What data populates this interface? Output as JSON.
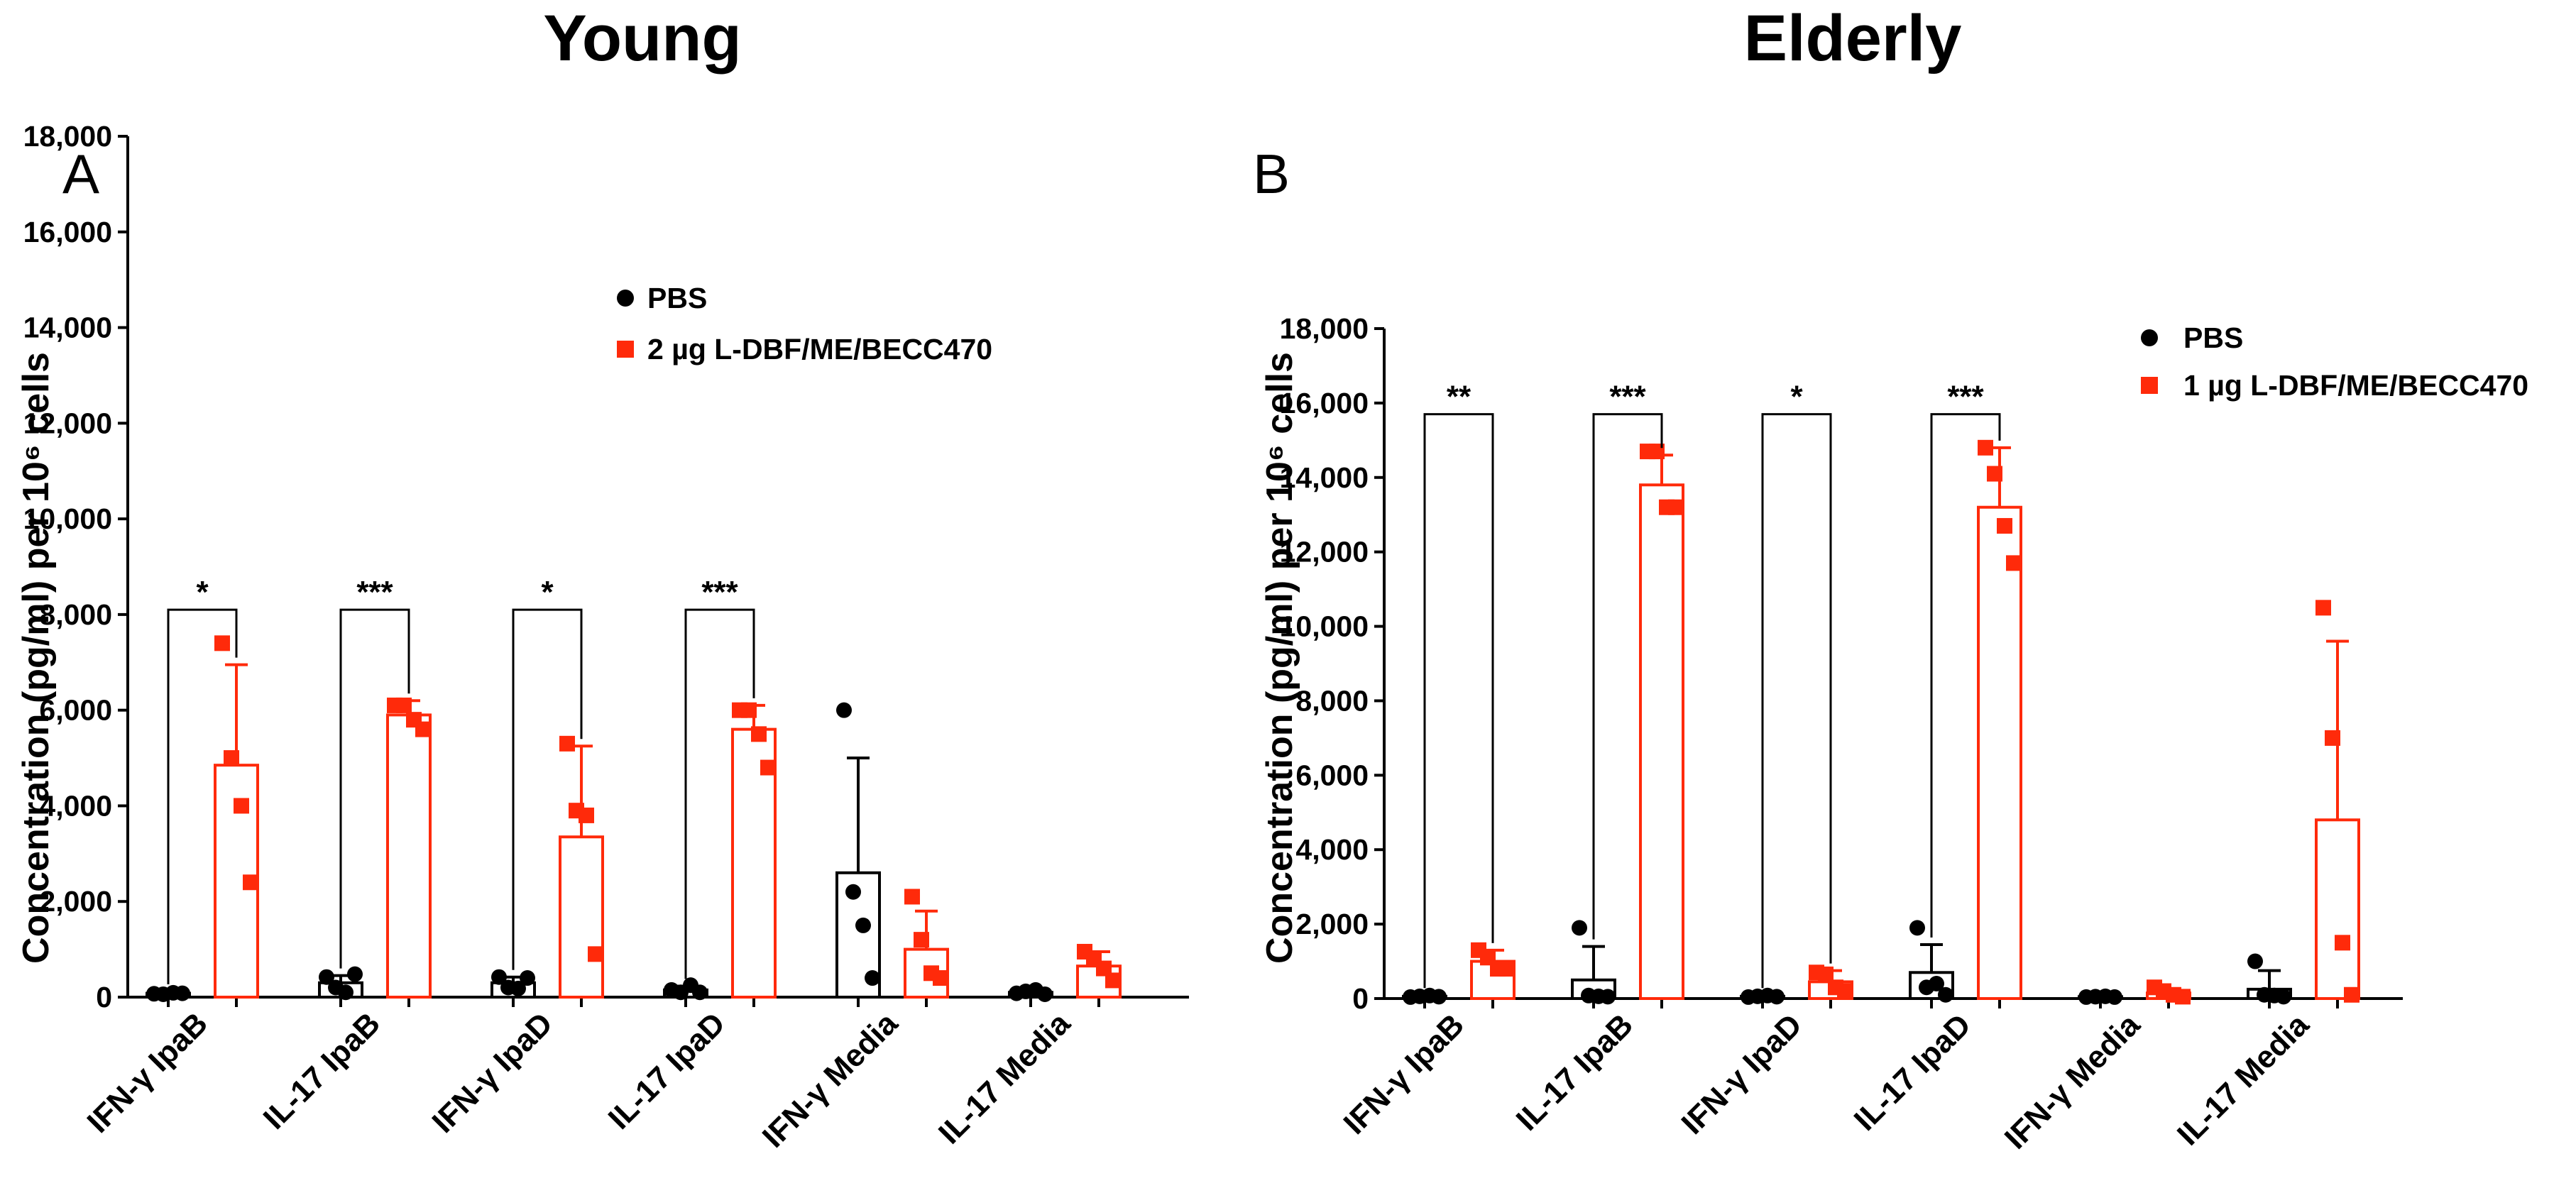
{
  "chart_data": [
    {
      "type": "bar",
      "panel_label": "A",
      "title": "Young",
      "xlabel": "",
      "ylabel": "Concentration (pg/ml) per 10⁶ cells",
      "ylim": [
        0,
        18000
      ],
      "yticks": [
        0,
        2000,
        4000,
        6000,
        8000,
        10000,
        12000,
        14000,
        16000,
        18000
      ],
      "ytick_labels": [
        "0",
        "2,000",
        "4,000",
        "6,000",
        "8,000",
        "10,000",
        "12,000",
        "14,000",
        "16,000",
        "18,000"
      ],
      "categories": [
        "IFN-γ IpaB",
        "IL-17 IpaB",
        "IFN-γ IpaD",
        "IL-17 IpaD",
        "IFN-γ Media",
        "IL-17 Media"
      ],
      "grid": false,
      "legend_position": "top-right",
      "series": [
        {
          "name": "PBS",
          "color": "#000000",
          "marker": "circle",
          "values": [
            80,
            300,
            300,
            150,
            2600,
            100
          ],
          "error": [
            40,
            150,
            120,
            80,
            2400,
            60
          ],
          "points": [
            [
              70,
              60,
              90,
              80
            ],
            [
              420,
              200,
              100,
              480
            ],
            [
              420,
              200,
              180,
              400
            ],
            [
              150,
              100,
              250,
              100
            ],
            [
              6000,
              2200,
              1500,
              400
            ],
            [
              80,
              120,
              150,
              60
            ]
          ]
        },
        {
          "name": "2 µg L-DBF/ME/BECC470",
          "color": "#ff2a0a",
          "marker": "square",
          "values": [
            4850,
            5900,
            3350,
            5600,
            1000,
            650
          ],
          "error": [
            2100,
            300,
            1900,
            500,
            800,
            300
          ],
          "points": [
            [
              7400,
              5000,
              4000,
              2400
            ],
            [
              6100,
              6100,
              5800,
              5600
            ],
            [
              5300,
              3900,
              3800,
              900
            ],
            [
              6000,
              6000,
              5500,
              4800
            ],
            [
              2100,
              1200,
              500,
              400
            ],
            [
              950,
              800,
              600,
              350
            ]
          ]
        }
      ],
      "significance": [
        {
          "category_index": 0,
          "label": "*",
          "y": 8100
        },
        {
          "category_index": 1,
          "label": "***",
          "y": 8100
        },
        {
          "category_index": 2,
          "label": "*",
          "y": 8100
        },
        {
          "category_index": 3,
          "label": "***",
          "y": 8100
        }
      ]
    },
    {
      "type": "bar",
      "panel_label": "B",
      "title": "Elderly",
      "xlabel": "",
      "ylabel": "Concentration (pg/ml) per 10⁶ cells",
      "ylim": [
        0,
        18000
      ],
      "yticks": [
        0,
        2000,
        4000,
        6000,
        8000,
        10000,
        12000,
        14000,
        16000,
        18000
      ],
      "ytick_labels": [
        "0",
        "2,000",
        "4,000",
        "6,000",
        "8,000",
        "10,000",
        "12,000",
        "14,000",
        "16,000",
        "18,000"
      ],
      "categories": [
        "IFN-γ IpaB",
        "IL-17 IpaB",
        "IFN-γ IpaD",
        "IL-17 IpaD",
        "IFN-γ Media",
        "IL-17 Media"
      ],
      "grid": false,
      "legend_position": "top-right",
      "series": [
        {
          "name": "PBS",
          "color": "#000000",
          "marker": "circle",
          "values": [
            60,
            500,
            60,
            700,
            50,
            250
          ],
          "error": [
            30,
            900,
            30,
            750,
            20,
            500
          ],
          "points": [
            [
              40,
              60,
              80,
              50
            ],
            [
              1900,
              80,
              60,
              50
            ],
            [
              40,
              60,
              80,
              50
            ],
            [
              1900,
              300,
              400,
              100
            ],
            [
              40,
              50,
              60,
              40
            ],
            [
              1000,
              100,
              80,
              50
            ]
          ]
        },
        {
          "name": "1 µg L-DBF/ME/BECC470",
          "color": "#ff2a0a",
          "marker": "square",
          "values": [
            1000,
            13800,
            450,
            13200,
            150,
            4800
          ],
          "error": [
            300,
            800,
            300,
            1600,
            100,
            4800
          ],
          "points": [
            [
              1300,
              1100,
              800,
              800
            ],
            [
              14700,
              14700,
              13200,
              13200
            ],
            [
              700,
              650,
              300,
              200
            ],
            [
              14800,
              14100,
              12700,
              11700
            ],
            [
              300,
              200,
              100,
              50
            ],
            [
              10500,
              7000,
              1500,
              100
            ]
          ]
        }
      ],
      "significance": [
        {
          "category_index": 0,
          "label": "**",
          "y": 15700
        },
        {
          "category_index": 1,
          "label": "***",
          "y": 15700
        },
        {
          "category_index": 2,
          "label": "*",
          "y": 15700
        },
        {
          "category_index": 3,
          "label": "***",
          "y": 15700
        }
      ]
    }
  ]
}
